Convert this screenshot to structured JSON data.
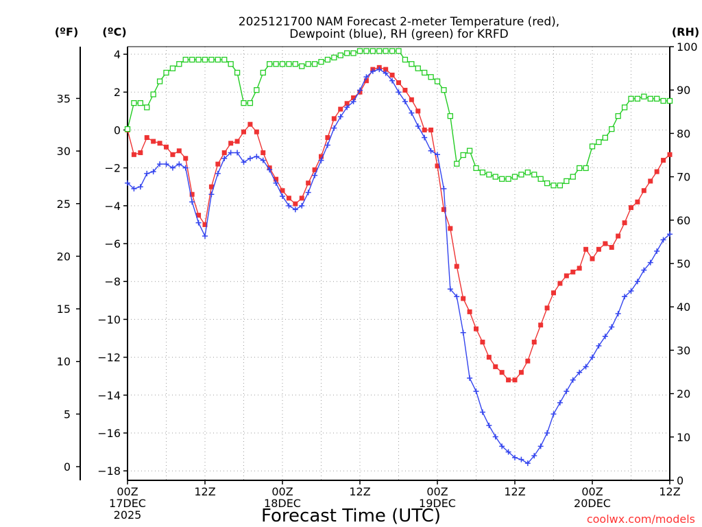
{
  "chart_data": {
    "type": "line",
    "title_line1": "2025121700 NAM Forecast 2-meter Temperature (red),",
    "title_line2": "Dewpoint (blue), RH (green) for KRFD",
    "xlabel": "Forecast Time (UTC)",
    "credit": "coolwx.com/models",
    "unit_f": "(ºF)",
    "unit_c": "(ºC)",
    "unit_rh": "(RH)",
    "x_range_hours": [
      0,
      84
    ],
    "c_range": [
      -18.5,
      4.4
    ],
    "rh_range": [
      0,
      100
    ],
    "c_ticks": [
      4,
      2,
      0,
      -2,
      -4,
      -6,
      -8,
      -10,
      -12,
      -14,
      -16,
      -18
    ],
    "f_ticks": [
      35,
      30,
      25,
      20,
      15,
      10,
      5,
      0
    ],
    "rh_ticks": [
      100,
      90,
      80,
      70,
      60,
      50,
      40,
      30,
      20,
      10,
      0
    ],
    "x_ticks": [
      {
        "hour": 0,
        "lines": [
          "00Z",
          "17DEC",
          "2025"
        ]
      },
      {
        "hour": 12,
        "lines": [
          "12Z"
        ]
      },
      {
        "hour": 24,
        "lines": [
          "00Z",
          "18DEC"
        ]
      },
      {
        "hour": 36,
        "lines": [
          "12Z"
        ]
      },
      {
        "hour": 48,
        "lines": [
          "00Z",
          "19DEC"
        ]
      },
      {
        "hour": 60,
        "lines": [
          "12Z"
        ]
      },
      {
        "hour": 72,
        "lines": [
          "00Z",
          "20DEC"
        ]
      },
      {
        "hour": 84,
        "lines": [
          "12Z"
        ]
      }
    ],
    "series": [
      {
        "name": "Temperature",
        "units": "C",
        "color": "#ee3333",
        "marker": "filled-square",
        "hours": [
          0,
          1,
          2,
          3,
          4,
          5,
          6,
          7,
          8,
          9,
          10,
          11,
          12,
          13,
          14,
          15,
          16,
          17,
          18,
          19,
          20,
          21,
          22,
          23,
          24,
          25,
          26,
          27,
          28,
          29,
          30,
          31,
          32,
          33,
          34,
          35,
          36,
          37,
          38,
          39,
          40,
          41,
          42,
          43,
          44,
          45,
          46,
          47,
          48,
          49,
          50,
          51,
          52,
          53,
          54,
          55,
          56,
          57,
          58,
          59,
          60,
          61,
          62,
          63,
          64,
          65,
          66,
          67,
          68,
          69,
          70,
          71,
          72,
          73,
          74,
          75,
          76,
          77,
          78,
          79,
          80,
          81,
          82,
          83,
          84
        ],
        "values": [
          0.0,
          -1.3,
          -1.2,
          -0.4,
          -0.6,
          -0.7,
          -0.9,
          -1.3,
          -1.1,
          -1.5,
          -3.4,
          -4.5,
          -5.0,
          -3.0,
          -1.8,
          -1.2,
          -0.7,
          -0.6,
          -0.1,
          0.3,
          -0.1,
          -1.2,
          -2.0,
          -2.6,
          -3.2,
          -3.6,
          -3.9,
          -3.6,
          -2.8,
          -2.1,
          -1.4,
          -0.4,
          0.6,
          1.1,
          1.4,
          1.7,
          2.0,
          2.6,
          3.2,
          3.3,
          3.2,
          2.9,
          2.5,
          2.1,
          1.6,
          1.0,
          0.0,
          0.0,
          -1.9,
          -4.2,
          -5.2,
          -7.2,
          -8.9,
          -9.6,
          -10.5,
          -11.2,
          -12.0,
          -12.5,
          -12.8,
          -13.2,
          -13.2,
          -12.8,
          -12.2,
          -11.2,
          -10.3,
          -9.4,
          -8.6,
          -8.1,
          -7.7,
          -7.5,
          -7.3,
          -6.3,
          -6.8,
          -6.3,
          -6.0,
          -6.2,
          -5.6,
          -4.9,
          -4.1,
          -3.8,
          -3.2,
          -2.7,
          -2.2,
          -1.6,
          -1.3
        ]
      },
      {
        "name": "Dewpoint",
        "units": "C",
        "color": "#3344ee",
        "marker": "plus",
        "hours": [
          0,
          1,
          2,
          3,
          4,
          5,
          6,
          7,
          8,
          9,
          10,
          11,
          12,
          13,
          14,
          15,
          16,
          17,
          18,
          19,
          20,
          21,
          22,
          23,
          24,
          25,
          26,
          27,
          28,
          29,
          30,
          31,
          32,
          33,
          34,
          35,
          36,
          37,
          38,
          39,
          40,
          41,
          42,
          43,
          44,
          45,
          46,
          47,
          48,
          49,
          50,
          51,
          52,
          53,
          54,
          55,
          56,
          57,
          58,
          59,
          60,
          61,
          62,
          63,
          64,
          65,
          66,
          67,
          68,
          69,
          70,
          71,
          72,
          73,
          74,
          75,
          76,
          77,
          78,
          79,
          80,
          81,
          82,
          83,
          84
        ],
        "values": [
          -2.8,
          -3.1,
          -3.0,
          -2.3,
          -2.2,
          -1.8,
          -1.8,
          -2.0,
          -1.8,
          -2.0,
          -3.8,
          -4.9,
          -5.6,
          -3.4,
          -2.3,
          -1.5,
          -1.2,
          -1.2,
          -1.7,
          -1.5,
          -1.4,
          -1.6,
          -2.1,
          -2.8,
          -3.5,
          -4.0,
          -4.2,
          -4.0,
          -3.3,
          -2.4,
          -1.6,
          -0.8,
          0.1,
          0.7,
          1.2,
          1.5,
          2.1,
          2.8,
          3.1,
          3.2,
          3.0,
          2.6,
          2.0,
          1.5,
          0.9,
          0.2,
          -0.4,
          -1.1,
          -1.3,
          -3.1,
          -8.4,
          -8.8,
          -10.7,
          -13.1,
          -13.8,
          -14.9,
          -15.6,
          -16.2,
          -16.7,
          -17.0,
          -17.3,
          -17.4,
          -17.6,
          -17.2,
          -16.7,
          -16.0,
          -15.0,
          -14.4,
          -13.8,
          -13.2,
          -12.8,
          -12.5,
          -12.0,
          -11.4,
          -10.9,
          -10.4,
          -9.7,
          -8.8,
          -8.5,
          -8.0,
          -7.4,
          -7.0,
          -6.4,
          -5.8,
          -5.5
        ]
      },
      {
        "name": "RH",
        "units": "%",
        "color": "#22cc22",
        "marker": "open-square",
        "hours": [
          0,
          1,
          2,
          3,
          4,
          5,
          6,
          7,
          8,
          9,
          10,
          11,
          12,
          13,
          14,
          15,
          16,
          17,
          18,
          19,
          20,
          21,
          22,
          23,
          24,
          25,
          26,
          27,
          28,
          29,
          30,
          31,
          32,
          33,
          34,
          35,
          36,
          37,
          38,
          39,
          40,
          41,
          42,
          43,
          44,
          45,
          46,
          47,
          48,
          49,
          50,
          51,
          52,
          53,
          54,
          55,
          56,
          57,
          58,
          59,
          60,
          61,
          62,
          63,
          64,
          65,
          66,
          67,
          68,
          69,
          70,
          71,
          72,
          73,
          74,
          75,
          76,
          77,
          78,
          79,
          80,
          81,
          82,
          83,
          84
        ],
        "values": [
          81,
          87,
          87,
          86,
          89,
          92,
          94,
          95,
          96,
          97,
          97,
          97,
          97,
          97,
          97,
          97,
          96,
          94,
          87,
          87,
          90,
          94,
          96,
          96,
          96,
          96,
          96,
          95.5,
          96,
          96,
          96.5,
          97,
          97.5,
          98,
          98.5,
          98.5,
          99,
          99,
          99,
          99,
          99,
          99,
          99,
          97,
          96,
          95,
          94,
          93,
          92,
          90,
          84,
          73,
          75,
          76,
          72,
          71,
          70.5,
          70,
          69.5,
          69.5,
          70,
          70.5,
          71,
          70.5,
          69.5,
          68.5,
          68,
          68,
          69,
          70,
          72,
          72,
          77,
          78,
          79,
          81,
          84,
          86,
          88,
          88,
          88.5,
          88,
          88,
          87.5,
          87.5
        ]
      }
    ]
  }
}
